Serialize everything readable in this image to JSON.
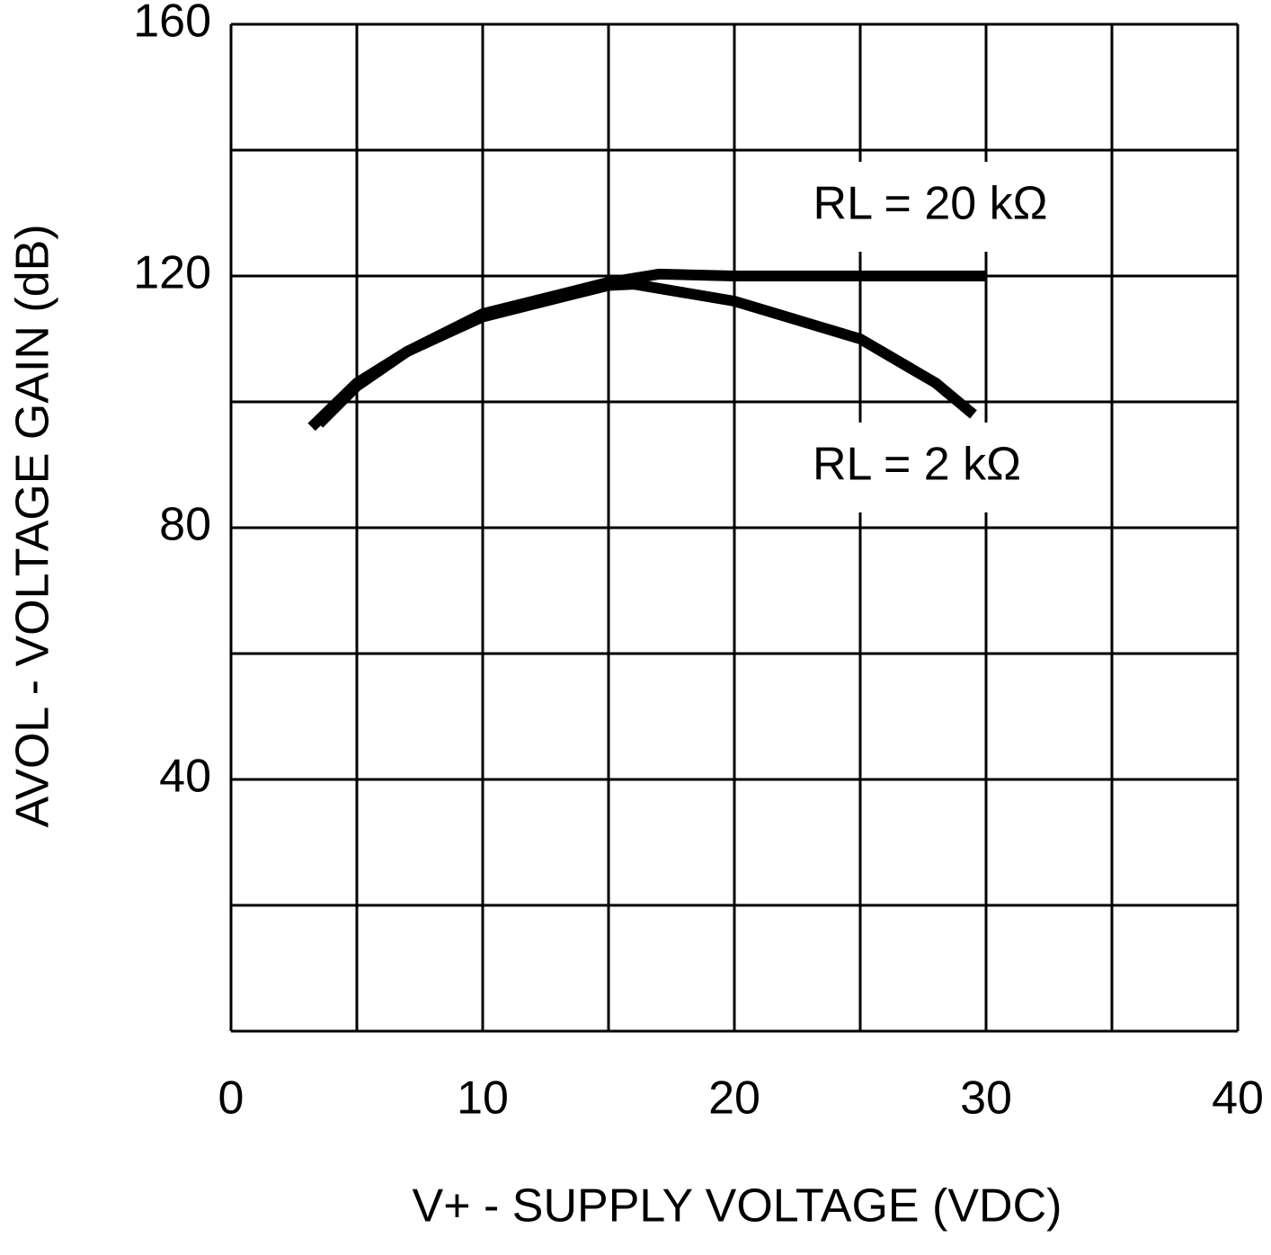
{
  "chart_data": {
    "type": "line",
    "xlabel": "V+ - SUPPLY VOLTAGE (VDC)",
    "ylabel": "AVOL - VOLTAGE GAIN (dB)",
    "xlim": [
      0,
      40
    ],
    "ylim": [
      0,
      160
    ],
    "xticks": [
      0,
      10,
      20,
      30,
      40
    ],
    "yticks": [
      40,
      80,
      120,
      160
    ],
    "xgrid": [
      0,
      5,
      10,
      15,
      20,
      25,
      30,
      35,
      40
    ],
    "ygrid": [
      0,
      20,
      40,
      60,
      80,
      100,
      120,
      140,
      160
    ],
    "grid": true,
    "series": [
      {
        "name": "RL = 20 kΩ",
        "color": "#000000",
        "x": [
          3.2,
          5,
          7,
          10,
          15,
          17,
          20,
          25,
          30
        ],
        "values": [
          96,
          103,
          108,
          114,
          119,
          120.3,
          120,
          120,
          120
        ]
      },
      {
        "name": "RL = 2 kΩ",
        "color": "#000000",
        "x": [
          3.5,
          5,
          7,
          10,
          15,
          16,
          20,
          25,
          28,
          29.5
        ],
        "values": [
          96.5,
          102.5,
          108,
          113.5,
          118.5,
          118.7,
          116,
          110,
          103,
          98
        ]
      }
    ]
  }
}
